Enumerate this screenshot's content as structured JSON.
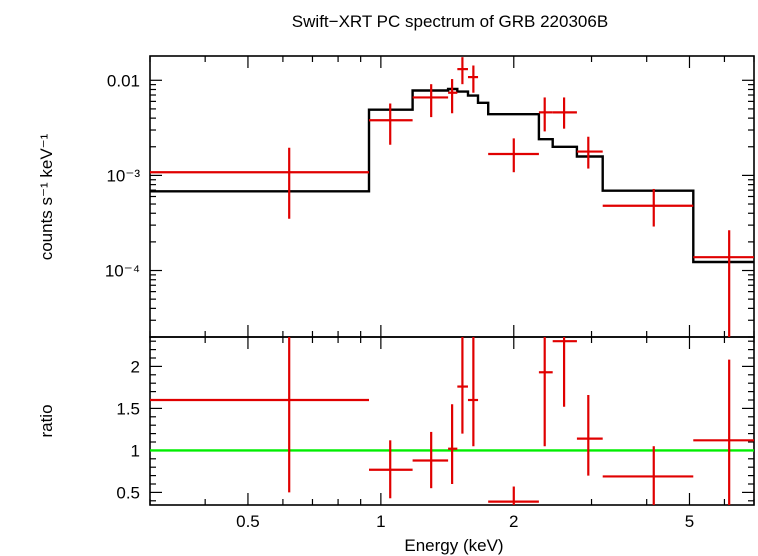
{
  "chart_data": [
    {
      "type": "scatter",
      "panel": "spectrum",
      "title": "Swift−XRT PC spectrum of GRB 220306B",
      "ylabel": "counts s⁻¹ keV⁻¹",
      "xlabel": "",
      "x_scale": "log",
      "y_scale": "log",
      "xlim": [
        0.3,
        7.0
      ],
      "ylim": [
        2e-05,
        0.018
      ],
      "y_ticks": [
        {
          "value": 0.01,
          "label": "0.01"
        },
        {
          "value": 0.001,
          "label": "10⁻³"
        },
        {
          "value": 0.0001,
          "label": "10⁻⁴"
        }
      ],
      "colors": {
        "data": "#e00000",
        "model": "#000000"
      },
      "series": [
        {
          "kind": "data",
          "points": [
            {
              "x": 0.62,
              "xlo": 0.3,
              "xhi": 0.94,
              "y": 0.00108,
              "ylo": 0.00035,
              "yhi": 0.00195
            },
            {
              "x": 1.05,
              "xlo": 0.94,
              "xhi": 1.18,
              "y": 0.0038,
              "ylo": 0.0021,
              "yhi": 0.0057
            },
            {
              "x": 1.3,
              "xlo": 1.18,
              "xhi": 1.42,
              "y": 0.0066,
              "ylo": 0.0041,
              "yhi": 0.0091
            },
            {
              "x": 1.45,
              "xlo": 1.42,
              "xhi": 1.49,
              "y": 0.0074,
              "ylo": 0.0045,
              "yhi": 0.0103
            },
            {
              "x": 1.53,
              "xlo": 1.49,
              "xhi": 1.575,
              "y": 0.0131,
              "ylo": 0.0091,
              "yhi": 0.0175
            },
            {
              "x": 1.62,
              "xlo": 1.575,
              "xhi": 1.66,
              "y": 0.0108,
              "ylo": 0.0074,
              "yhi": 0.0143
            },
            {
              "x": 2.0,
              "xlo": 1.75,
              "xhi": 2.28,
              "y": 0.00168,
              "ylo": 0.00108,
              "yhi": 0.00245
            },
            {
              "x": 2.35,
              "xlo": 2.28,
              "xhi": 2.45,
              "y": 0.0046,
              "ylo": 0.0029,
              "yhi": 0.0066
            },
            {
              "x": 2.6,
              "xlo": 2.45,
              "xhi": 2.78,
              "y": 0.0046,
              "ylo": 0.0031,
              "yhi": 0.0066
            },
            {
              "x": 2.95,
              "xlo": 2.78,
              "xhi": 3.18,
              "y": 0.00178,
              "ylo": 0.00118,
              "yhi": 0.00255
            },
            {
              "x": 4.15,
              "xlo": 3.18,
              "xhi": 5.1,
              "y": 0.00048,
              "ylo": 0.00029,
              "yhi": 0.00072
            },
            {
              "x": 6.15,
              "xlo": 5.1,
              "xhi": 7.0,
              "y": 0.000138,
              "ylo": 2e-05,
              "yhi": 0.000265
            }
          ]
        },
        {
          "kind": "model",
          "steps": [
            {
              "xlo": 0.3,
              "xhi": 0.94,
              "y": 0.00068
            },
            {
              "xlo": 0.94,
              "xhi": 1.18,
              "y": 0.0049
            },
            {
              "xlo": 1.18,
              "xhi": 1.42,
              "y": 0.0078
            },
            {
              "xlo": 1.42,
              "xhi": 1.49,
              "y": 0.0081
            },
            {
              "xlo": 1.49,
              "xhi": 1.575,
              "y": 0.0076
            },
            {
              "xlo": 1.575,
              "xhi": 1.66,
              "y": 0.0069
            },
            {
              "xlo": 1.66,
              "xhi": 1.75,
              "y": 0.0058
            },
            {
              "xlo": 1.75,
              "xhi": 2.28,
              "y": 0.0044
            },
            {
              "xlo": 2.28,
              "xhi": 2.45,
              "y": 0.0024
            },
            {
              "xlo": 2.45,
              "xhi": 2.78,
              "y": 0.002
            },
            {
              "xlo": 2.78,
              "xhi": 3.18,
              "y": 0.00158
            },
            {
              "xlo": 3.18,
              "xhi": 5.1,
              "y": 0.00069
            },
            {
              "xlo": 5.1,
              "xhi": 7.0,
              "y": 0.000123
            }
          ]
        }
      ]
    },
    {
      "type": "scatter",
      "panel": "ratio",
      "title": "",
      "ylabel": "ratio",
      "xlabel": "Energy (keV)",
      "x_scale": "log",
      "y_scale": "linear",
      "xlim": [
        0.3,
        7.0
      ],
      "ylim": [
        0.35,
        2.35
      ],
      "x_ticks": [
        {
          "value": 0.5,
          "label": "0.5"
        },
        {
          "value": 1,
          "label": "1"
        },
        {
          "value": 2,
          "label": "2"
        },
        {
          "value": 5,
          "label": "5"
        }
      ],
      "y_ticks": [
        {
          "value": 0.5,
          "label": "0.5"
        },
        {
          "value": 1,
          "label": "1"
        },
        {
          "value": 1.5,
          "label": "1.5"
        },
        {
          "value": 2,
          "label": "2"
        }
      ],
      "reference_line": {
        "y": 1,
        "color": "#00ee00"
      },
      "colors": {
        "data": "#e00000"
      },
      "series": [
        {
          "kind": "data",
          "points": [
            {
              "x": 0.62,
              "xlo": 0.3,
              "xhi": 0.94,
              "y": 1.6,
              "ylo": 0.5,
              "yhi": 2.35
            },
            {
              "x": 1.05,
              "xlo": 0.94,
              "xhi": 1.18,
              "y": 0.77,
              "ylo": 0.43,
              "yhi": 1.12
            },
            {
              "x": 1.3,
              "xlo": 1.18,
              "xhi": 1.42,
              "y": 0.88,
              "ylo": 0.55,
              "yhi": 1.22
            },
            {
              "x": 1.45,
              "xlo": 1.42,
              "xhi": 1.49,
              "y": 1.02,
              "ylo": 0.6,
              "yhi": 1.55
            },
            {
              "x": 1.53,
              "xlo": 1.49,
              "xhi": 1.575,
              "y": 1.76,
              "ylo": 1.2,
              "yhi": 2.35
            },
            {
              "x": 1.62,
              "xlo": 1.575,
              "xhi": 1.66,
              "y": 1.6,
              "ylo": 1.05,
              "yhi": 2.35
            },
            {
              "x": 2.0,
              "xlo": 1.75,
              "xhi": 2.28,
              "y": 0.39,
              "ylo": 0.35,
              "yhi": 0.57
            },
            {
              "x": 2.35,
              "xlo": 2.28,
              "xhi": 2.45,
              "y": 1.93,
              "ylo": 1.05,
              "yhi": 2.35
            },
            {
              "x": 2.6,
              "xlo": 2.45,
              "xhi": 2.78,
              "y": 2.3,
              "ylo": 1.52,
              "yhi": 2.35
            },
            {
              "x": 2.95,
              "xlo": 2.78,
              "xhi": 3.18,
              "y": 1.14,
              "ylo": 0.7,
              "yhi": 1.66
            },
            {
              "x": 4.15,
              "xlo": 3.18,
              "xhi": 5.1,
              "y": 0.69,
              "ylo": 0.35,
              "yhi": 1.05
            },
            {
              "x": 6.15,
              "xlo": 5.1,
              "xhi": 7.0,
              "y": 1.12,
              "ylo": 0.35,
              "yhi": 2.08
            }
          ]
        }
      ]
    }
  ]
}
